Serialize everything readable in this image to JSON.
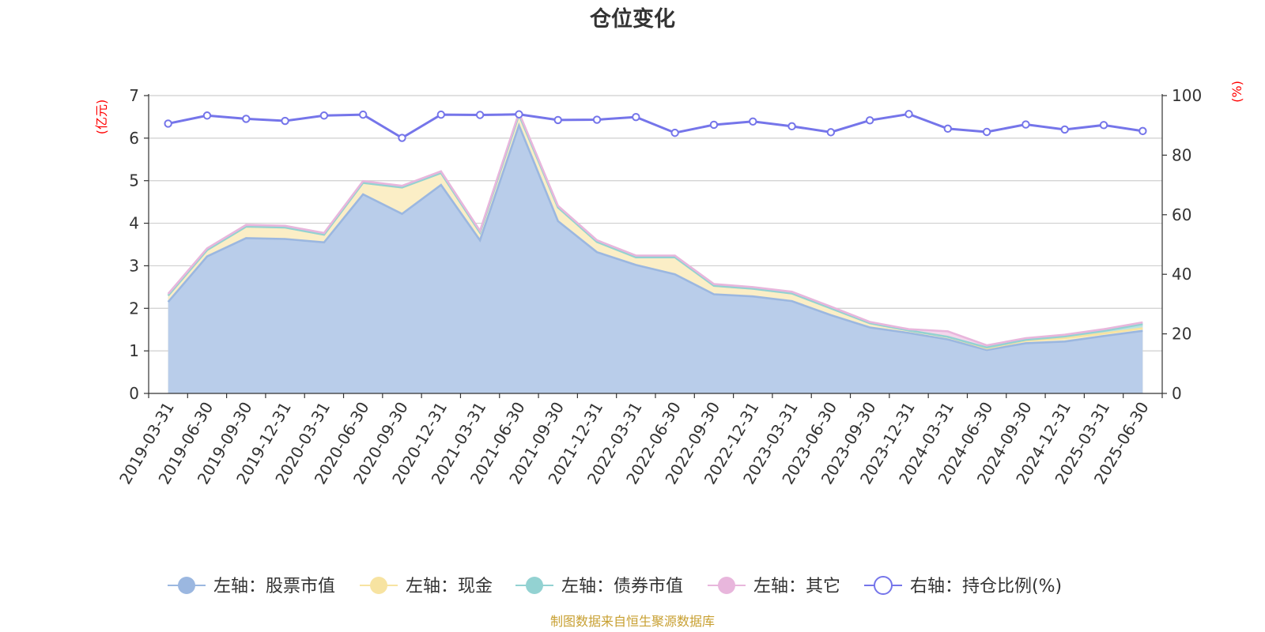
{
  "chart_data": {
    "type": "area",
    "title": "仓位变化",
    "left_unit": "(亿元)",
    "right_unit": "(%)",
    "ylim_left": [
      0,
      7
    ],
    "yticks_left": [
      0,
      1,
      2,
      3,
      4,
      5,
      6,
      7
    ],
    "ylim_right": [
      0,
      100
    ],
    "yticks_right": [
      0,
      20,
      40,
      60,
      80,
      100
    ],
    "grid": true,
    "legend_position": "bottom",
    "categories": [
      "2019-03-31",
      "2019-06-30",
      "2019-09-30",
      "2019-12-31",
      "2020-03-31",
      "2020-06-30",
      "2020-09-30",
      "2020-12-31",
      "2021-03-31",
      "2021-06-30",
      "2021-09-30",
      "2021-12-31",
      "2022-03-31",
      "2022-06-30",
      "2022-09-30",
      "2022-12-31",
      "2023-03-31",
      "2023-06-30",
      "2023-09-30",
      "2023-12-31",
      "2024-03-31",
      "2024-06-30",
      "2024-09-30",
      "2024-12-31",
      "2025-03-31",
      "2025-06-30"
    ],
    "series": [
      {
        "name": "左轴：股票市值",
        "axis": "left",
        "color": "#9bb7e0",
        "fill": "#b9cdea",
        "values": [
          2.15,
          3.22,
          3.65,
          3.63,
          3.55,
          4.68,
          4.22,
          4.9,
          3.6,
          6.3,
          4.05,
          3.32,
          3.02,
          2.8,
          2.33,
          2.28,
          2.17,
          1.84,
          1.55,
          1.42,
          1.27,
          1.02,
          1.18,
          1.22,
          1.35,
          1.47
        ]
      },
      {
        "name": "左轴：现金",
        "axis": "left",
        "color": "#f7e3a1",
        "fill": "#fbeec6",
        "values": [
          0.15,
          0.15,
          0.27,
          0.27,
          0.18,
          0.27,
          0.62,
          0.28,
          0.18,
          0.25,
          0.32,
          0.24,
          0.18,
          0.4,
          0.2,
          0.18,
          0.18,
          0.16,
          0.1,
          0.06,
          0.06,
          0.04,
          0.06,
          0.08,
          0.06,
          0.06
        ]
      },
      {
        "name": "左轴：债券市值",
        "axis": "left",
        "color": "#93d2d2",
        "fill": "#b9e3e3",
        "values": [
          0,
          0,
          0,
          0,
          0,
          0,
          0,
          0,
          0,
          0,
          0,
          0,
          0,
          0,
          0,
          0,
          0,
          0,
          0,
          0,
          0,
          0.02,
          0.02,
          0.04,
          0.06,
          0.1
        ]
      },
      {
        "name": "左轴：其它",
        "axis": "left",
        "color": "#e8b6dc",
        "fill": "#f3d6ec",
        "values": [
          0.04,
          0.04,
          0.04,
          0.04,
          0.04,
          0.04,
          0.04,
          0.04,
          0.04,
          0.05,
          0.04,
          0.04,
          0.04,
          0.04,
          0.04,
          0.04,
          0.04,
          0.04,
          0.03,
          0.03,
          0.13,
          0.05,
          0.04,
          0.04,
          0.04,
          0.04
        ]
      },
      {
        "name": "右轴：持仓比例(%)",
        "axis": "right",
        "color": "#7575ea",
        "values": [
          90.6,
          93.3,
          92.2,
          91.5,
          93.3,
          93.6,
          85.8,
          93.6,
          93.5,
          93.7,
          91.8,
          91.9,
          92.8,
          87.5,
          90.2,
          91.3,
          89.7,
          87.7,
          91.7,
          93.8,
          88.9,
          87.8,
          90.3,
          88.6,
          90.1,
          88.1
        ]
      }
    ]
  },
  "footer": {
    "source": "制图数据来自恒生聚源数据库"
  }
}
